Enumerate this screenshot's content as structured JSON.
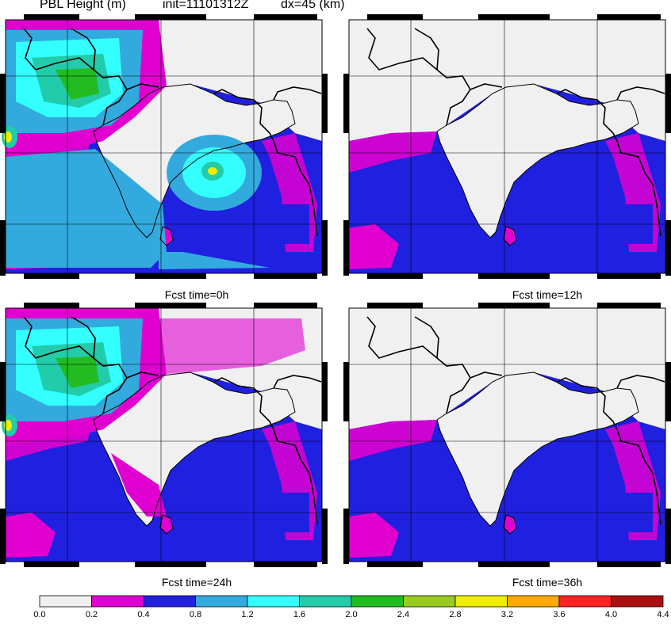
{
  "header": {
    "variable": "PBL Height (m)",
    "init": "init=11101312Z",
    "dx": "dx=45 (km)"
  },
  "panels": [
    {
      "caption": "Fcst time=0h",
      "state": "deep-pbl-land"
    },
    {
      "caption": "Fcst time=12h",
      "state": "night-ocean"
    },
    {
      "caption": "Fcst time=24h",
      "state": "mixed"
    },
    {
      "caption": "Fcst time=36h",
      "state": "night-ocean"
    }
  ],
  "colorbar": {
    "ticks": [
      "0.0",
      "0.2",
      "0.4",
      "0.8",
      "1.2",
      "1.6",
      "2.0",
      "2.4",
      "2.8",
      "3.2",
      "3.6",
      "4.0",
      "4.4"
    ],
    "colors": [
      "#f0f0f0",
      "#e000d0",
      "#2020e0",
      "#33aadd",
      "#33ffff",
      "#22ccaa",
      "#22bb22",
      "#99cc22",
      "#eeee00",
      "#ffaa00",
      "#ff2222",
      "#aa1010"
    ]
  },
  "map_colors": {
    "land": "#f0f0f0",
    "ocean_low": "#2020e0",
    "magenta": "#e000d0",
    "medium": "#33aadd",
    "cyan": "#33ffff",
    "teal": "#22ccaa",
    "green": "#22bb22",
    "yellow": "#eeee00",
    "border": "#000000"
  }
}
